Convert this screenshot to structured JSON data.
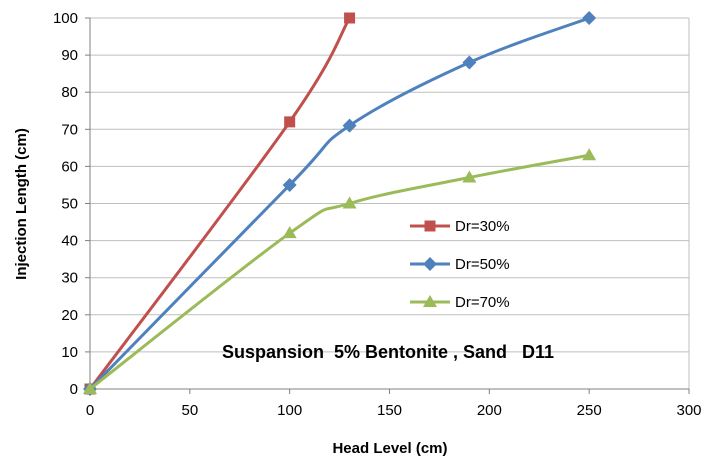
{
  "chart_data": {
    "type": "line",
    "xlabel": "Head Level (cm)",
    "ylabel": "Injection Length (cm)",
    "xlim": [
      0,
      300
    ],
    "ylim": [
      0,
      100
    ],
    "x_ticks": [
      0,
      50,
      100,
      150,
      200,
      250,
      300
    ],
    "y_ticks": [
      0,
      10,
      20,
      30,
      40,
      50,
      60,
      70,
      80,
      90,
      100
    ],
    "grid": {
      "horizontal": true,
      "vertical": false
    },
    "legend_position": "center-right",
    "annotation": "Suspansion  5% Bentonite , Sand   D11",
    "series": [
      {
        "name": "Dr=30%",
        "marker": "square",
        "color": "#C0504D",
        "x": [
          0,
          100,
          130
        ],
        "y": [
          0,
          72,
          100
        ]
      },
      {
        "name": "Dr=50%",
        "marker": "diamond",
        "color": "#4F81BD",
        "x": [
          0,
          100,
          130,
          190,
          250
        ],
        "y": [
          0,
          55,
          71,
          88,
          100
        ]
      },
      {
        "name": "Dr=70%",
        "marker": "triangle",
        "color": "#9BBB59",
        "x": [
          0,
          100,
          130,
          190,
          250
        ],
        "y": [
          0,
          42,
          50,
          57,
          63
        ]
      }
    ]
  }
}
